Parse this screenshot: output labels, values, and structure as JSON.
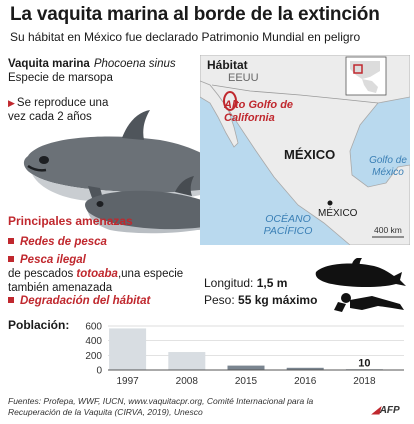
{
  "header": {
    "title": "La vaquita marina al borde de la extinción",
    "subtitle": "Su hábitat en México fue declarado Patrimonio Mundial en peligro"
  },
  "species": {
    "common_name": "Vaquita marina",
    "scientific_name": "Phocoena sinus",
    "type": "Especie de marsopa",
    "reproduction": "Se reproduce una vez cada 2 años"
  },
  "threats": {
    "title": "Principales amenazas",
    "items": [
      {
        "label": "Redes de pesca"
      },
      {
        "label": "Pesca ilegal",
        "text_pre": "de pescados ",
        "highlight": "totoaba",
        "text_post": ",una especie también amenazada"
      },
      {
        "label": "Degradación del hábitat"
      }
    ]
  },
  "map": {
    "label": "Hábitat",
    "places": {
      "usa": "EEUU",
      "gulf_california": "Alto Golfo de California",
      "mexico": "MÉXICO",
      "gulf_mexico": "Golfo de México",
      "city": "MÉXICO",
      "pacific": "OCÉANO PACÍFICO",
      "scale": "400 km"
    }
  },
  "measures": {
    "length_label": "Longitud:",
    "length_value": "1,5 m",
    "weight_label": "Peso:",
    "weight_value": "55 kg máximo"
  },
  "population": {
    "title": "Población:"
  },
  "chart_data": {
    "type": "bar",
    "title": "Población:",
    "categories": [
      "1997",
      "2008",
      "2015",
      "2016",
      "2018"
    ],
    "values": [
      567,
      245,
      60,
      30,
      10
    ],
    "ylim": [
      0,
      600
    ],
    "yticks": [
      "600",
      "400",
      "200",
      "0"
    ],
    "labeled_value": "10",
    "colors": {
      "past": "#d8dde2",
      "recent": "#7a8590"
    }
  },
  "footer": {
    "sources": "Fuentes: Profepa, WWF, IUCN, www.vaquitacpr.org, Comité Internacional para la Recuperación de la Vaquita (CIRVA, 2019), Unesco",
    "agency": "AFP"
  },
  "colors": {
    "accent": "#c0282e",
    "land": "#ececec",
    "water": "#b9d9ee",
    "habitat": "#c0282e"
  }
}
